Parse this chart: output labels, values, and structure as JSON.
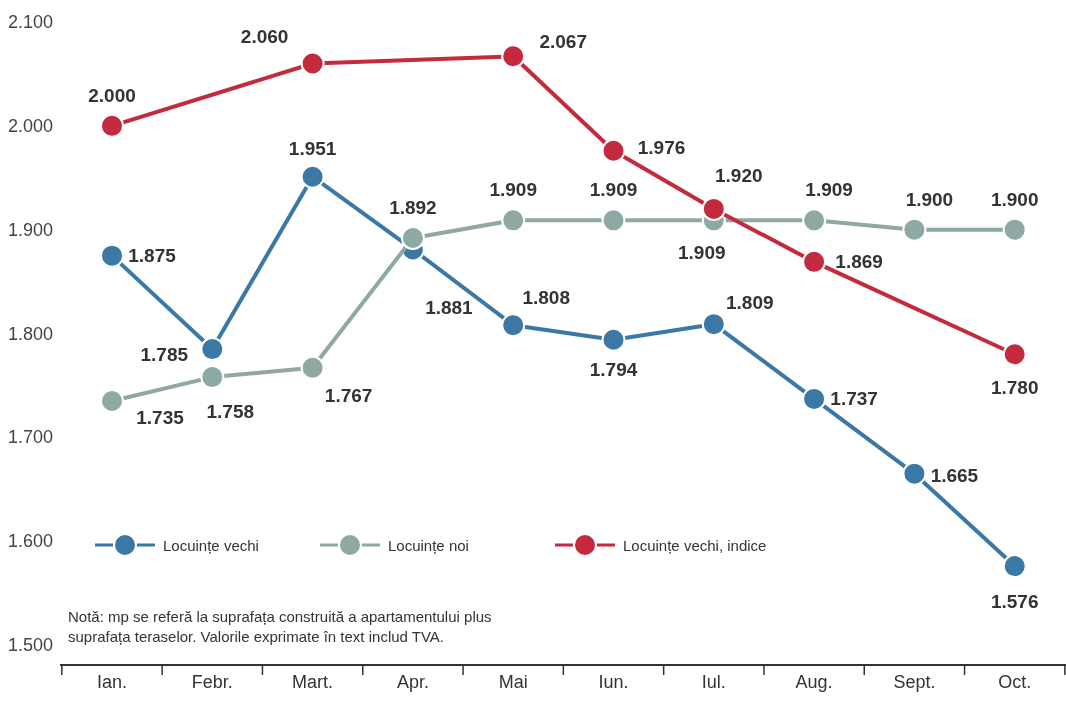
{
  "chart_data": {
    "type": "line",
    "categories": [
      "Ian.",
      "Febr.",
      "Mart.",
      "Apr.",
      "Mai",
      "Iun.",
      "Iul.",
      "Aug.",
      "Sept.",
      "Oct."
    ],
    "series": [
      {
        "name": "Locuințe vechi",
        "color": "#3b78a6",
        "values": [
          1875,
          1785,
          1951,
          1881,
          1808,
          1794,
          1809,
          1737,
          1665,
          1576
        ],
        "value_labels": [
          "1.875",
          "1.785",
          "1.951",
          "1.881",
          "1.808",
          "1.794",
          "1.809",
          "1.737",
          "1.665",
          "1.576"
        ]
      },
      {
        "name": "Locuințe noi",
        "color": "#8ea8a3",
        "values": [
          1735,
          1758,
          1767,
          1892,
          1909,
          1909,
          1909,
          1909,
          1900,
          1900
        ],
        "value_labels": [
          "1.735",
          "1.758",
          "1.767",
          "1.892",
          "1.909",
          "1.909",
          "1.909",
          "1.909",
          "1.900",
          "1.900"
        ]
      },
      {
        "name": "Locuințe vechi, indice",
        "color": "#c42a3d",
        "values": [
          2000,
          null,
          2060,
          null,
          2067,
          1976,
          1920,
          1869,
          null,
          1780
        ],
        "value_labels": [
          "2.000",
          null,
          "2.060",
          null,
          "2.067",
          "1.976",
          "1.920",
          "1.869",
          null,
          "1.780"
        ]
      }
    ],
    "ylim": [
      1500,
      2100
    ],
    "yticks": [
      {
        "value": 1500,
        "label": "1.500"
      },
      {
        "value": 1600,
        "label": "1.600"
      },
      {
        "value": 1700,
        "label": "1.700"
      },
      {
        "value": 1800,
        "label": "1.800"
      },
      {
        "value": 1900,
        "label": "1.900"
      },
      {
        "value": 2000,
        "label": "2.000"
      },
      {
        "value": 2100,
        "label": "2.100"
      }
    ],
    "marker": "circle",
    "line_style": "solid",
    "legend": "bottom left",
    "annotations": [
      "Notă: mp se referă la suprafața construită a apartamentului plus suprafața teraselor. Valorile exprimate în text includ TVA."
    ]
  }
}
